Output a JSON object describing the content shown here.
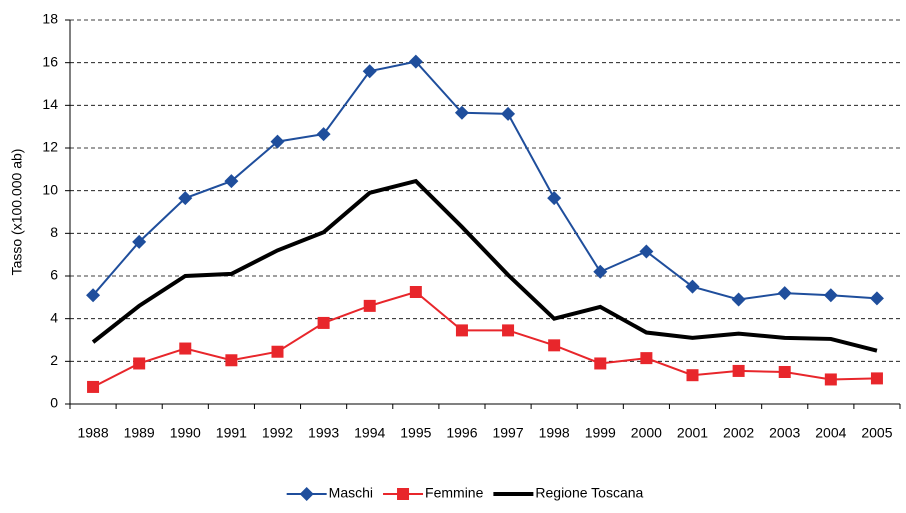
{
  "chart_data": {
    "type": "line",
    "y_label": "Tasso (x100.000 ab)",
    "categories": [
      "1988",
      "1989",
      "1990",
      "1991",
      "1992",
      "1993",
      "1994",
      "1995",
      "1996",
      "1997",
      "1998",
      "1999",
      "2000",
      "2001",
      "2002",
      "2003",
      "2004",
      "2005"
    ],
    "series": [
      {
        "name": "Maschi",
        "color": "#1f4e9c",
        "marker": "diamond",
        "values": [
          5.1,
          7.6,
          9.65,
          10.45,
          12.3,
          12.65,
          15.6,
          16.05,
          13.65,
          13.6,
          9.65,
          6.2,
          7.15,
          5.5,
          4.9,
          5.2,
          5.1,
          4.95
        ]
      },
      {
        "name": "Femmine",
        "color": "#e8262b",
        "marker": "square",
        "values": [
          0.8,
          1.9,
          2.6,
          2.05,
          2.45,
          3.8,
          4.6,
          5.25,
          3.45,
          3.45,
          2.75,
          1.9,
          2.15,
          1.35,
          1.55,
          1.5,
          1.15,
          1.2
        ]
      },
      {
        "name": "Regione Toscana",
        "color": "#000000",
        "values": [
          2.9,
          4.6,
          6.0,
          6.1,
          7.2,
          8.05,
          9.9,
          10.45,
          8.3,
          6.05,
          4.0,
          4.55,
          3.35,
          3.1,
          3.3,
          3.1,
          3.05,
          2.5
        ]
      }
    ],
    "ylim": [
      0,
      18
    ],
    "yticks": [
      0,
      2,
      4,
      6,
      8,
      10,
      12,
      14,
      16,
      18
    ],
    "grid": true,
    "legend": "bottom"
  }
}
